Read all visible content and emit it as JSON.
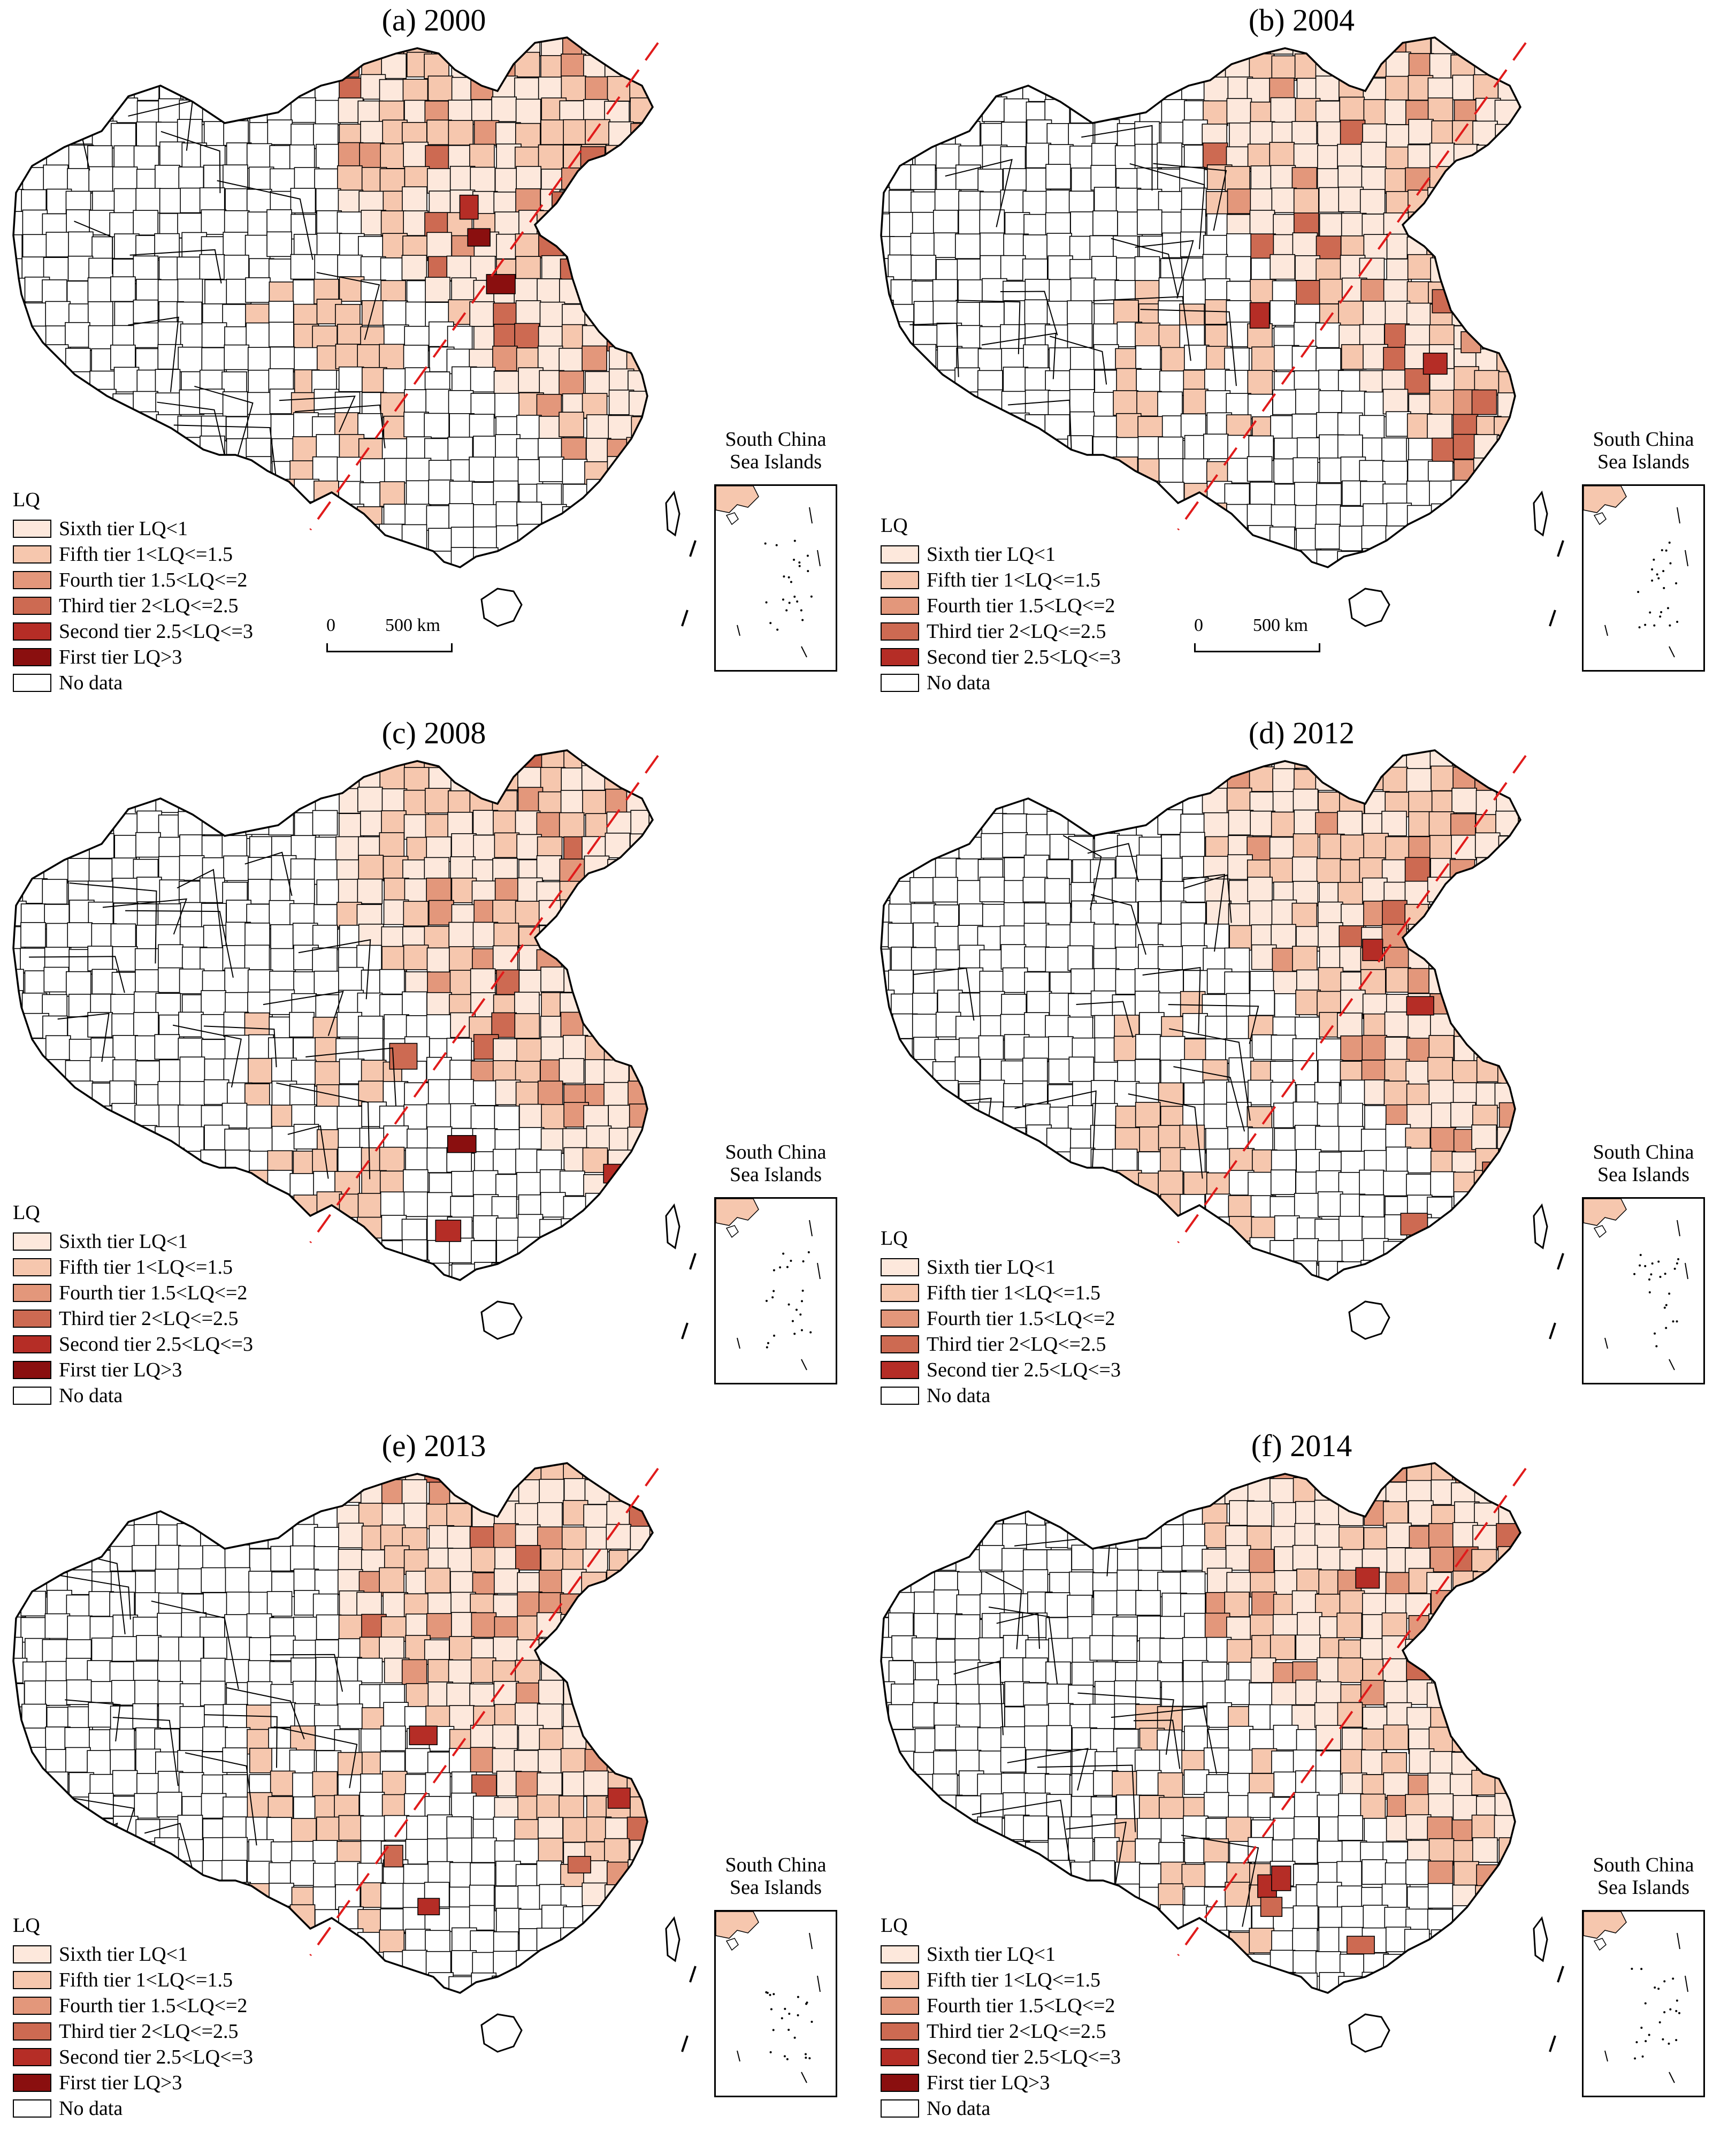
{
  "colors": {
    "sixth": "#fde8dc",
    "fifth": "#f6c7ae",
    "fourth": "#e3977b",
    "third": "#cd6a52",
    "second": "#b52d26",
    "first": "#8a0f0f",
    "nodata": "#ffffff",
    "hu_line": "#e01b1b"
  },
  "legend_title": "LQ",
  "legend_items": {
    "sixth": "Sixth tier LQ<1",
    "fifth": "Fifth tier 1<LQ<=1.5",
    "fourth": "Fourth tier 1.5<LQ<=2",
    "third": "Third tier 2<LQ<=2.5",
    "second": "Second tier 2.5<LQ<=3",
    "first": "First tier LQ>3",
    "nodata": "No data"
  },
  "scale_zero": "0",
  "scale_label": "500 km",
  "scs_label": "South China Sea Islands",
  "panels": [
    {
      "title": "(a) 2000",
      "tiers": [
        "sixth",
        "fifth",
        "fourth",
        "third",
        "second",
        "first",
        "nodata"
      ],
      "fill_seed": 11,
      "hot": [
        "first",
        "first",
        "second",
        "second",
        "third",
        "third"
      ]
    },
    {
      "title": "(b) 2004",
      "tiers": [
        "sixth",
        "fifth",
        "fourth",
        "third",
        "second",
        "nodata"
      ],
      "fill_seed": 23,
      "hot": [
        "second",
        "second",
        "third",
        "third",
        "fourth"
      ]
    },
    {
      "title": "(c) 2008",
      "tiers": [
        "sixth",
        "fifth",
        "fourth",
        "third",
        "second",
        "first",
        "nodata"
      ],
      "fill_seed": 37,
      "hot": [
        "second",
        "second",
        "third",
        "third",
        "first"
      ]
    },
    {
      "title": "(d) 2012",
      "tiers": [
        "sixth",
        "fifth",
        "fourth",
        "third",
        "second",
        "nodata"
      ],
      "fill_seed": 41,
      "hot": [
        "second",
        "second",
        "third",
        "third",
        "fourth"
      ]
    },
    {
      "title": "(e) 2013",
      "tiers": [
        "sixth",
        "fifth",
        "fourth",
        "third",
        "second",
        "first",
        "nodata"
      ],
      "fill_seed": 53,
      "hot": [
        "second",
        "second",
        "second",
        "third",
        "third"
      ]
    },
    {
      "title": "(f) 2014",
      "tiers": [
        "sixth",
        "fifth",
        "fourth",
        "third",
        "second",
        "first",
        "nodata"
      ],
      "fill_seed": 67,
      "hot": [
        "second",
        "second",
        "second",
        "third",
        "third"
      ]
    }
  ]
}
